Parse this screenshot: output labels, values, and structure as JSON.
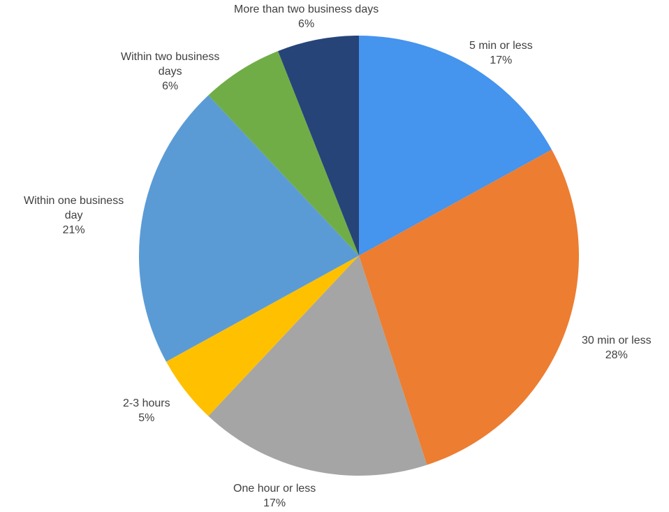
{
  "chart_data": {
    "type": "pie",
    "title": "",
    "legend": "none",
    "start": "top, clockwise",
    "slices": [
      {
        "label": "5 min or less",
        "lines": [
          "5 min or less"
        ],
        "value": 17,
        "pct_label": "17%",
        "color": "#4594ED"
      },
      {
        "label": "30 min or less",
        "lines": [
          "30 min or less"
        ],
        "value": 28,
        "pct_label": "28%",
        "color": "#ED7D31"
      },
      {
        "label": "One hour or less",
        "lines": [
          "One hour or less"
        ],
        "value": 17,
        "pct_label": "17%",
        "color": "#A5A5A5"
      },
      {
        "label": "2-3 hours",
        "lines": [
          "2-3 hours"
        ],
        "value": 5,
        "pct_label": "5%",
        "color": "#FFC000"
      },
      {
        "label": "Within one business day",
        "lines": [
          "Within one business",
          "day"
        ],
        "value": 21,
        "pct_label": "21%",
        "color": "#5B9BD5"
      },
      {
        "label": "Within two business days",
        "lines": [
          "Within two business",
          "days"
        ],
        "value": 6,
        "pct_label": "6%",
        "color": "#70AD47"
      },
      {
        "label": "More than two business days",
        "lines": [
          "More than two business days"
        ],
        "value": 6,
        "pct_label": "6%",
        "color": "#264478"
      }
    ]
  }
}
